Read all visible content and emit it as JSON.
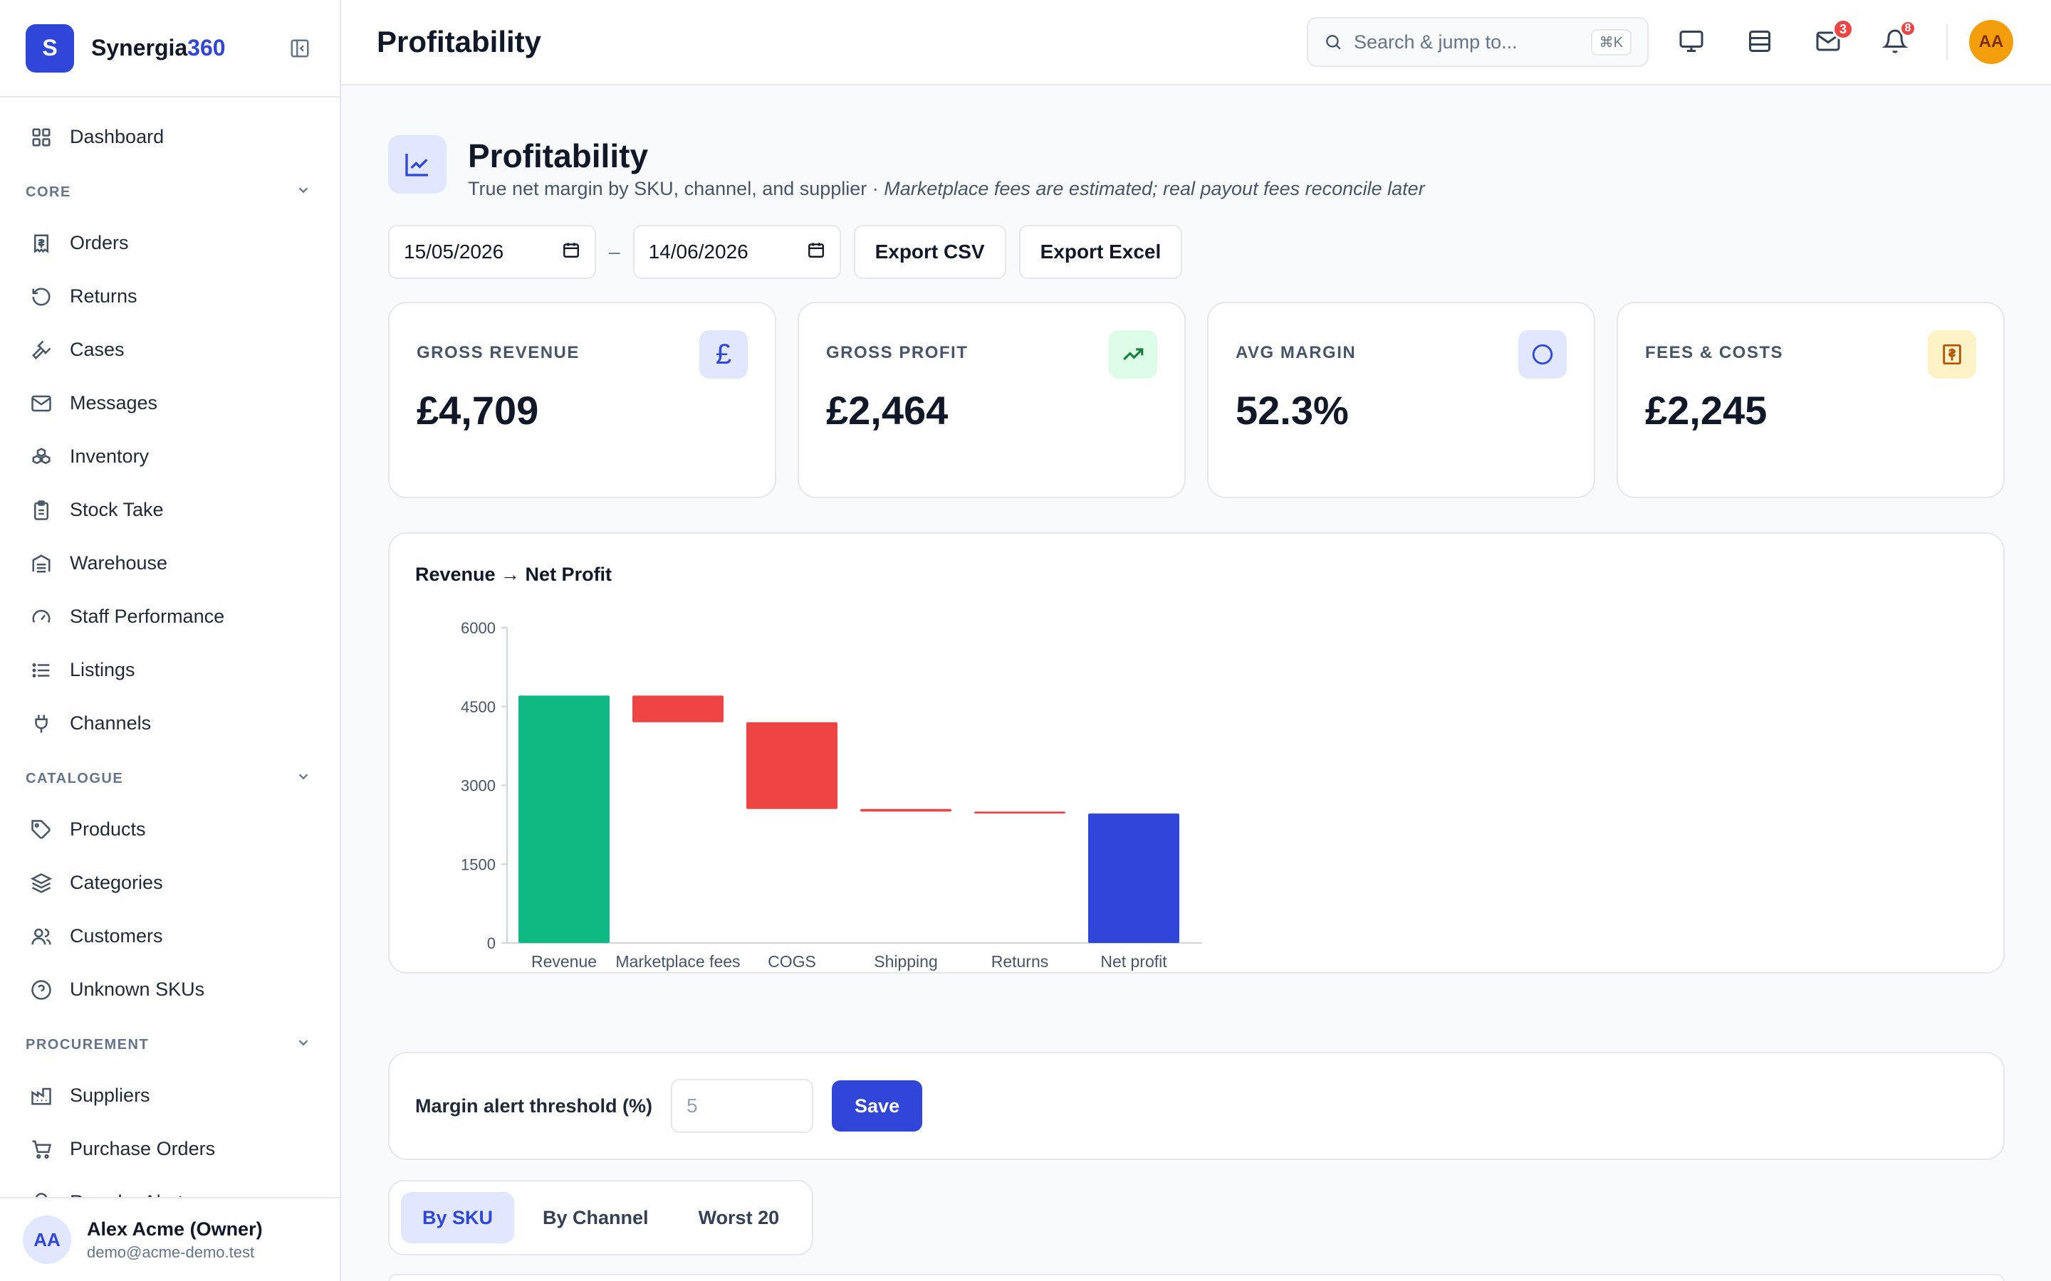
{
  "brand": {
    "logo_letter": "S",
    "name": "Synergia",
    "accent": "360",
    "accent_color": "#2f46d8"
  },
  "sidebar": {
    "top_item": {
      "label": "Dashboard",
      "icon": "grid-icon"
    },
    "sections": [
      {
        "title": "CORE",
        "items": [
          {
            "label": "Orders",
            "icon": "receipt-icon"
          },
          {
            "label": "Returns",
            "icon": "undo-icon"
          },
          {
            "label": "Cases",
            "icon": "gavel-icon"
          },
          {
            "label": "Messages",
            "icon": "mail-icon"
          },
          {
            "label": "Inventory",
            "icon": "boxes-icon"
          },
          {
            "label": "Stock Take",
            "icon": "clipboard-icon"
          },
          {
            "label": "Warehouse",
            "icon": "warehouse-icon"
          },
          {
            "label": "Staff Performance",
            "icon": "gauge-icon"
          },
          {
            "label": "Listings",
            "icon": "list-icon"
          },
          {
            "label": "Channels",
            "icon": "plug-icon"
          }
        ]
      },
      {
        "title": "CATALOGUE",
        "items": [
          {
            "label": "Products",
            "icon": "tag-icon"
          },
          {
            "label": "Categories",
            "icon": "layers-icon"
          },
          {
            "label": "Customers",
            "icon": "users-icon"
          },
          {
            "label": "Unknown SKUs",
            "icon": "help-circle-icon"
          }
        ]
      },
      {
        "title": "PROCUREMENT",
        "items": [
          {
            "label": "Suppliers",
            "icon": "factory-icon"
          },
          {
            "label": "Purchase Orders",
            "icon": "cart-icon"
          },
          {
            "label": "Reorder Alerts",
            "icon": "bell-ring-icon"
          }
        ]
      }
    ],
    "user": {
      "initials": "AA",
      "name": "Alex Acme (Owner)",
      "email": "demo@acme-demo.test"
    }
  },
  "topbar": {
    "title": "Profitability",
    "search_placeholder": "Search & jump to...",
    "search_shortcut": "⌘K",
    "mail_badge": "3",
    "bell_badge": "8",
    "avatar_initials": "AA"
  },
  "page": {
    "title": "Profitability",
    "subtitle": "True net margin by SKU, channel, and supplier · ",
    "subtitle_note": "Marketplace fees are estimated; real payout fees reconcile later",
    "date_from": "15/05/2026",
    "date_sep": "–",
    "date_to": "14/06/2026",
    "export_csv": "Export CSV",
    "export_excel": "Export Excel"
  },
  "kpis": [
    {
      "label": "GROSS REVENUE",
      "value": "£4,709",
      "icon": "pound-icon",
      "icon_bg": "#e0e7ff",
      "icon_color": "#2f46d8"
    },
    {
      "label": "GROSS PROFIT",
      "value": "£2,464",
      "icon": "trending-up-icon",
      "icon_bg": "#dcfce7",
      "icon_color": "#15803d"
    },
    {
      "label": "AVG MARGIN",
      "value": "52.3%",
      "icon": "circle-icon",
      "icon_bg": "#e0e7ff",
      "icon_color": "#2f46d8"
    },
    {
      "label": "FEES & COSTS",
      "value": "£2,245",
      "icon": "receipt-icon",
      "icon_bg": "#fef3c7",
      "icon_color": "#b45309"
    }
  ],
  "chart_data": {
    "type": "bar",
    "title": "Revenue → Net Profit",
    "categories": [
      "Revenue",
      "Marketplace fees",
      "COGS",
      "Shipping",
      "Returns",
      "Net profit"
    ],
    "bars": [
      {
        "from": 0,
        "to": 4709,
        "color": "#10b981"
      },
      {
        "from": 4200,
        "to": 4709,
        "color": "#ef4444"
      },
      {
        "from": 2550,
        "to": 4200,
        "color": "#ef4444"
      },
      {
        "from": 2500,
        "to": 2550,
        "color": "#ef4444"
      },
      {
        "from": 2464,
        "to": 2500,
        "color": "#ef4444"
      },
      {
        "from": 0,
        "to": 2464,
        "color": "#2f46d8"
      }
    ],
    "ylim": [
      0,
      6000
    ],
    "yticks": [
      0,
      1500,
      3000,
      4500,
      6000
    ],
    "xlabel": "",
    "ylabel": ""
  },
  "threshold": {
    "label": "Margin alert threshold (%)",
    "placeholder": "5",
    "save": "Save"
  },
  "tabs": [
    "By SKU",
    "By Channel",
    "Worst 20"
  ]
}
